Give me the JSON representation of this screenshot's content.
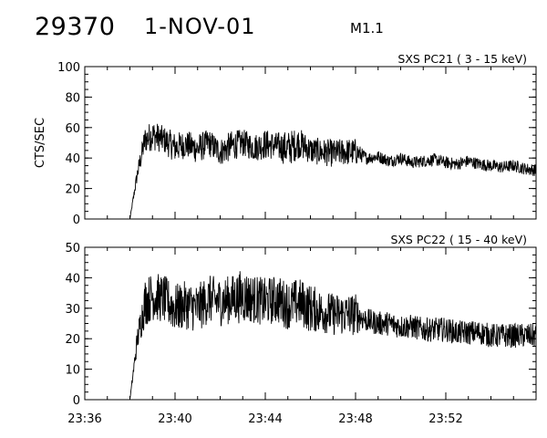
{
  "header": {
    "event_id": "29370",
    "date": "1-NOV-01",
    "flare_class": "M1.1"
  },
  "chart_data": [
    {
      "type": "line",
      "title": "SXS PC21  (  3 - 15 keV)",
      "ylabel": "CTS/SEC",
      "xlabel": "",
      "ylim": [
        0,
        100
      ],
      "yticks": [
        "0",
        "20",
        "40",
        "60",
        "80",
        "100"
      ],
      "xlim": [
        "23:36",
        "23:56"
      ],
      "xticks": [
        "23:36",
        "23:40",
        "23:44",
        "23:48",
        "23:52"
      ],
      "series": [
        {
          "x": [
            "23:38:00",
            "23:38:20",
            "23:38:40",
            "23:39:00",
            "23:39:30",
            "23:40:00",
            "23:40:30",
            "23:41:00",
            "23:41:30",
            "23:42:00",
            "23:42:30",
            "23:43:00",
            "23:43:30",
            "23:44:00",
            "23:44:30",
            "23:45:00",
            "23:45:30",
            "23:46:00",
            "23:46:30",
            "23:47:00",
            "23:47:30",
            "23:48:00",
            "23:48:15",
            "23:48:30",
            "23:49:00",
            "23:49:30",
            "23:50:00",
            "23:50:30",
            "23:51:00",
            "23:51:30",
            "23:52:00",
            "23:52:30",
            "23:53:00",
            "23:53:30",
            "23:54:00",
            "23:54:30",
            "23:55:00",
            "23:55:30",
            "23:56:00"
          ],
          "values": [
            0,
            30,
            52,
            55,
            52,
            47,
            49,
            46,
            50,
            44,
            48,
            50,
            47,
            49,
            48,
            46,
            50,
            45,
            44,
            43,
            44,
            44,
            42,
            40,
            41,
            38,
            40,
            37,
            38,
            39,
            37,
            36,
            38,
            36,
            35,
            34,
            35,
            33,
            32
          ],
          "spread": [
            0,
            5,
            9,
            10,
            9,
            10,
            9,
            10,
            9,
            9,
            10,
            9,
            9,
            10,
            9,
            12,
            10,
            9,
            9,
            9,
            9,
            9,
            5,
            4,
            4,
            4,
            4,
            4,
            4,
            4,
            4,
            4,
            4,
            4,
            4,
            4,
            4,
            4,
            4
          ]
        }
      ]
    },
    {
      "type": "line",
      "title": "SXS PC22  ( 15 - 40 keV)",
      "ylabel": "",
      "xlabel": "",
      "ylim": [
        0,
        50
      ],
      "yticks": [
        "0",
        "10",
        "20",
        "30",
        "40",
        "50"
      ],
      "xlim": [
        "23:36",
        "23:56"
      ],
      "xticks": [
        "23:36",
        "23:40",
        "23:44",
        "23:48",
        "23:52"
      ],
      "series": [
        {
          "x": [
            "23:38:00",
            "23:38:20",
            "23:38:40",
            "23:39:00",
            "23:39:30",
            "23:40:00",
            "23:40:30",
            "23:41:00",
            "23:41:30",
            "23:42:00",
            "23:42:30",
            "23:43:00",
            "23:43:30",
            "23:44:00",
            "23:44:30",
            "23:45:00",
            "23:45:30",
            "23:46:00",
            "23:46:30",
            "23:47:00",
            "23:47:30",
            "23:48:00",
            "23:48:15",
            "23:48:30",
            "23:49:00",
            "23:49:30",
            "23:50:00",
            "23:50:30",
            "23:51:00",
            "23:51:30",
            "23:52:00",
            "23:52:30",
            "23:53:00",
            "23:53:30",
            "23:54:00",
            "23:54:30",
            "23:55:00",
            "23:55:30",
            "23:56:00"
          ],
          "values": [
            0,
            20,
            32,
            34,
            33,
            30,
            31,
            30,
            33,
            32,
            33,
            34,
            33,
            32,
            33,
            31,
            32,
            30,
            29,
            28,
            28,
            28,
            27,
            26,
            25,
            25,
            24,
            24,
            23,
            23,
            23,
            22,
            22,
            22,
            21,
            21,
            21,
            21,
            21
          ],
          "spread": [
            0,
            4,
            8,
            8,
            8,
            8,
            8,
            8,
            8,
            8,
            8,
            9,
            8,
            8,
            8,
            8,
            8,
            8,
            7,
            7,
            7,
            7,
            4,
            4,
            4,
            4,
            4,
            4,
            4,
            4,
            4,
            4,
            4,
            4,
            4,
            4,
            4,
            4,
            4
          ]
        }
      ]
    }
  ]
}
